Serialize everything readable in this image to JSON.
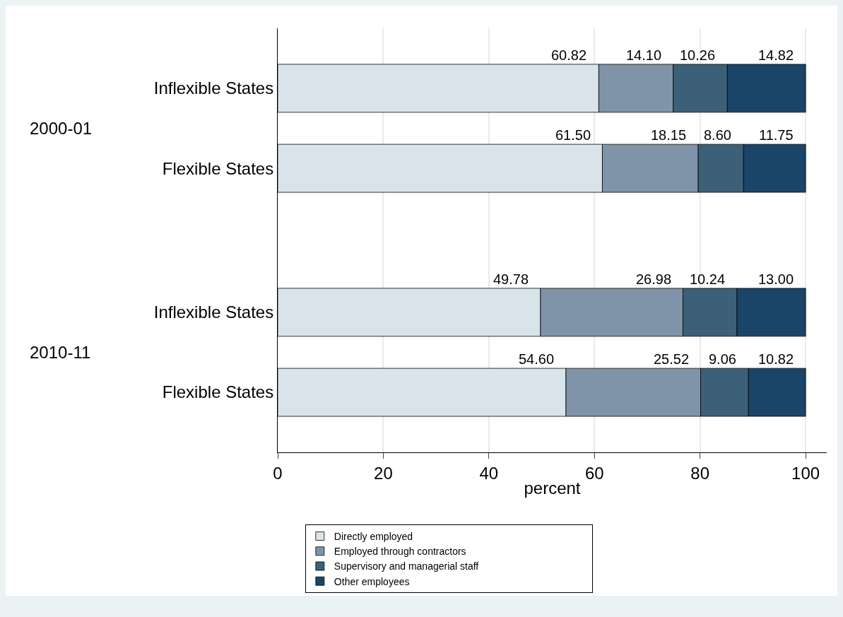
{
  "chart_data": {
    "type": "bar",
    "orientation": "horizontal",
    "stacked": true,
    "categories": [
      "Inflexible States",
      "Flexible States",
      "Inflexible States",
      "Flexible States"
    ],
    "series": [
      {
        "name": "Directly employed",
        "color": "#d9e4ea",
        "values": [
          60.82,
          61.5,
          49.78,
          54.6
        ],
        "value_labels": [
          "60.82",
          "61.50",
          "49.78",
          "54.60"
        ]
      },
      {
        "name": "Employed through contractors",
        "color": "#7f94a8",
        "values": [
          14.1,
          18.15,
          26.98,
          25.52
        ],
        "value_labels": [
          "14.10",
          "18.15",
          "26.98",
          "25.52"
        ]
      },
      {
        "name": "Supervisory and managerial staff",
        "color": "#3d6079",
        "values": [
          10.26,
          8.6,
          10.24,
          9.06
        ],
        "value_labels": [
          "10.26",
          "8.60",
          "10.24",
          "9.06"
        ]
      },
      {
        "name": "Other employees",
        "color": "#1a4468",
        "values": [
          14.82,
          11.75,
          13.0,
          10.82
        ],
        "value_labels": [
          "14.82",
          "11.75",
          "13.00",
          "10.82"
        ]
      }
    ],
    "annotations": [
      "2000-01",
      "2010-11"
    ],
    "xlabel": "percent",
    "xlim": [
      0,
      104
    ],
    "xticks": [
      0,
      20,
      40,
      60,
      80,
      100
    ],
    "grid": "x",
    "legend": "bottom"
  }
}
